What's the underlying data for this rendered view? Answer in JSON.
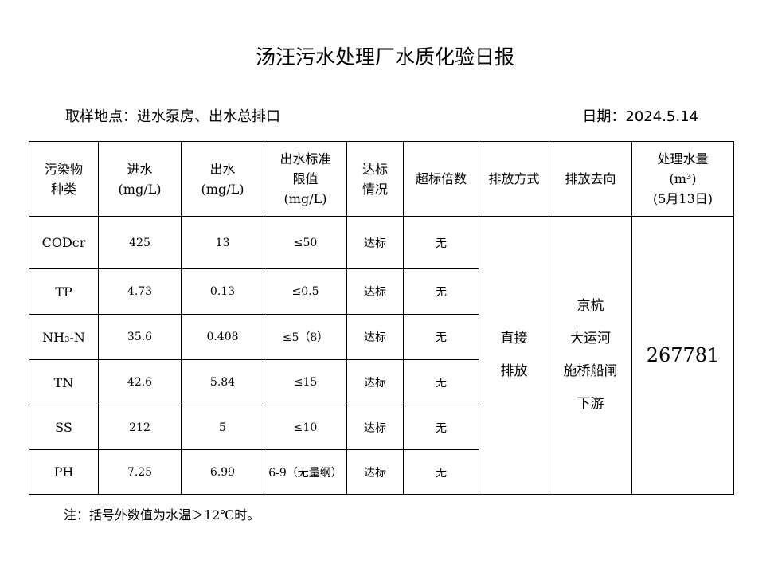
{
  "header": {
    "title": "汤汪污水处理厂水质化验日报",
    "location": "取样地点：进水泵房、出水总排口",
    "date": "日期：2024.5.14"
  },
  "table": {
    "columns": [
      "污染物\n种类",
      "进水\n(mg/L)",
      "出水\n(mg/L)",
      "出水标准\n限值\n(mg/L)",
      "达标\n情况",
      "超标倍数",
      "排放方式",
      "排放去向",
      "处理水量\n(m³)\n(5月13日)"
    ],
    "rows": [
      [
        "CODcr",
        "425",
        "13",
        "≤50",
        "达标",
        "无"
      ],
      [
        "TP",
        "4.73",
        "0.13",
        "≤0.5",
        "达标",
        "无"
      ],
      [
        "NH₃-N",
        "35.6",
        "0.408",
        "≤5（8）",
        "达标",
        "无"
      ],
      [
        "TN",
        "42.6",
        "5.84",
        "≤15",
        "达标",
        "无"
      ],
      [
        "SS",
        "212",
        "5",
        "≤10",
        "达标",
        "无"
      ],
      [
        "PH",
        "7.25",
        "6.99",
        "6-9（无量纲）",
        "达标",
        "无"
      ]
    ],
    "discharge_method": "直接\n排放",
    "discharge_destination": "京杭\n大运河\n施桥船闸\n下游",
    "treated_volume": "267781"
  },
  "note": "注：括号外数值为水温＞12℃时。"
}
